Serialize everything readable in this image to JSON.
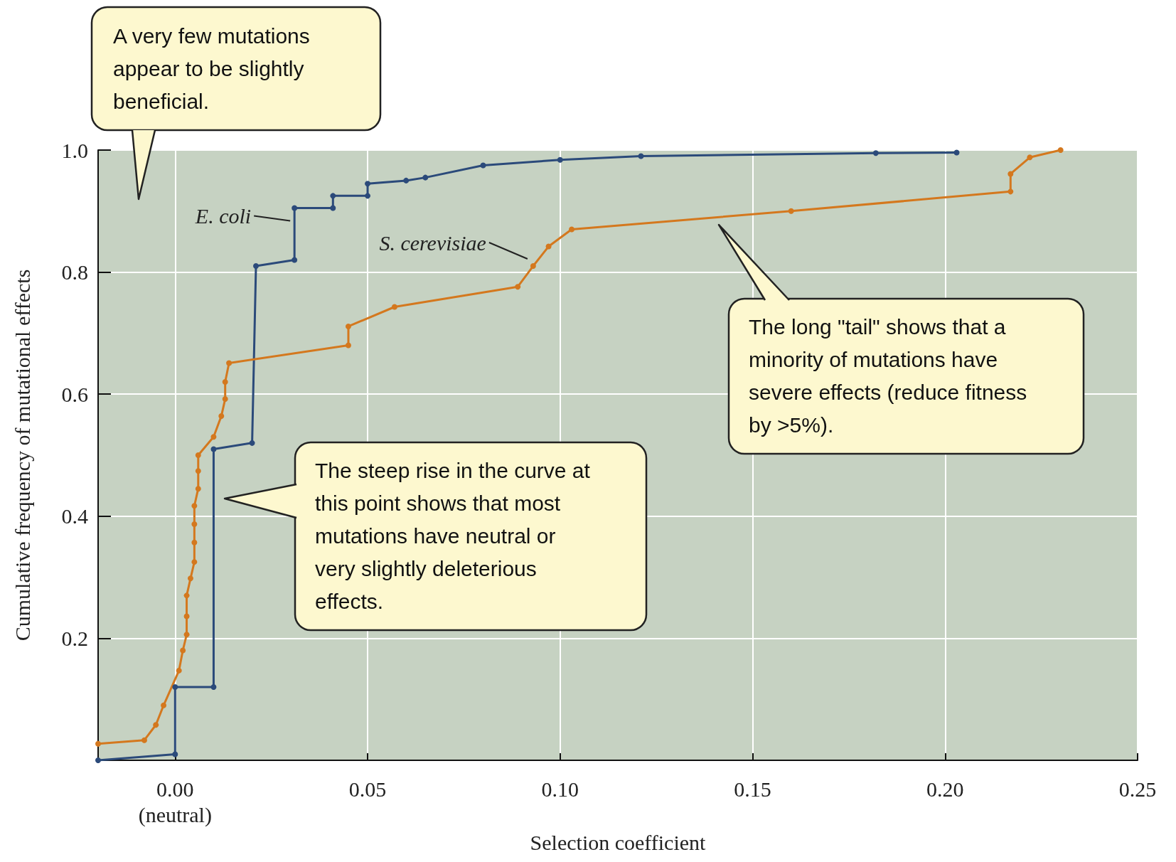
{
  "chart_data": {
    "type": "line",
    "xlabel": "Selection coefficient",
    "ylabel": "Cumulative frequency of mutational effects",
    "xlim": [
      -0.02,
      0.25
    ],
    "ylim": [
      0,
      1
    ],
    "xticks": [
      {
        "value": 0,
        "label": "0.00\n(neutral)"
      },
      {
        "value": 0.05,
        "label": "0.05"
      },
      {
        "value": 0.1,
        "label": "0.10"
      },
      {
        "value": 0.15,
        "label": "0.15"
      },
      {
        "value": 0.2,
        "label": "0.20"
      },
      {
        "value": 0.25,
        "label": "0.25"
      }
    ],
    "yticks": [
      {
        "value": 0.2,
        "label": "0.2"
      },
      {
        "value": 0.4,
        "label": "0.4"
      },
      {
        "value": 0.6,
        "label": "0.6"
      },
      {
        "value": 0.8,
        "label": "0.8"
      },
      {
        "value": 1,
        "label": "1.0"
      }
    ],
    "grid": true,
    "marker": "circle",
    "line_style": "solid",
    "series": [
      {
        "name": "E. coli",
        "color": "#2b4a7a",
        "x": [
          -0.02,
          0,
          0,
          0.01,
          0.01,
          0.02,
          0.021,
          0.031,
          0.031,
          0.041,
          0.041,
          0.05,
          0.05,
          0.06,
          0.065,
          0.08,
          0.1,
          0.121,
          0.182,
          0.203
        ],
        "values": [
          0,
          0.01,
          0.12,
          0.12,
          0.51,
          0.52,
          0.81,
          0.82,
          0.905,
          0.905,
          0.925,
          0.925,
          0.945,
          0.95,
          0.955,
          0.975,
          0.984,
          0.99,
          0.995,
          0.996
        ]
      },
      {
        "name": "S. cerevisiae",
        "color": "#d4781e",
        "x": [
          -0.02,
          -0.008,
          -0.005,
          -0.003,
          0.001,
          0.002,
          0.003,
          0.003,
          0.003,
          0.004,
          0.005,
          0.005,
          0.005,
          0.005,
          0.006,
          0.006,
          0.006,
          0.01,
          0.012,
          0.013,
          0.013,
          0.014,
          0.045,
          0.045,
          0.057,
          0.089,
          0.093,
          0.097,
          0.103,
          0.16,
          0.217,
          0.217,
          0.222,
          0.23
        ],
        "values": [
          0.027,
          0.033,
          0.058,
          0.09,
          0.147,
          0.18,
          0.206,
          0.236,
          0.27,
          0.298,
          0.325,
          0.357,
          0.387,
          0.417,
          0.445,
          0.474,
          0.5,
          0.53,
          0.564,
          0.592,
          0.62,
          0.651,
          0.68,
          0.711,
          0.743,
          0.776,
          0.81,
          0.842,
          0.87,
          0.9,
          0.932,
          0.961,
          0.988,
          1.0
        ]
      }
    ],
    "annotations": [
      "A very few mutations appear to be slightly beneficial.",
      "The steep rise in the curve at this point shows that most mutations have neutral or very slightly deleterious effects.",
      "The long \"tail\" shows that a minority of mutations have severe effects (reduce fitness by >5%)."
    ]
  }
}
